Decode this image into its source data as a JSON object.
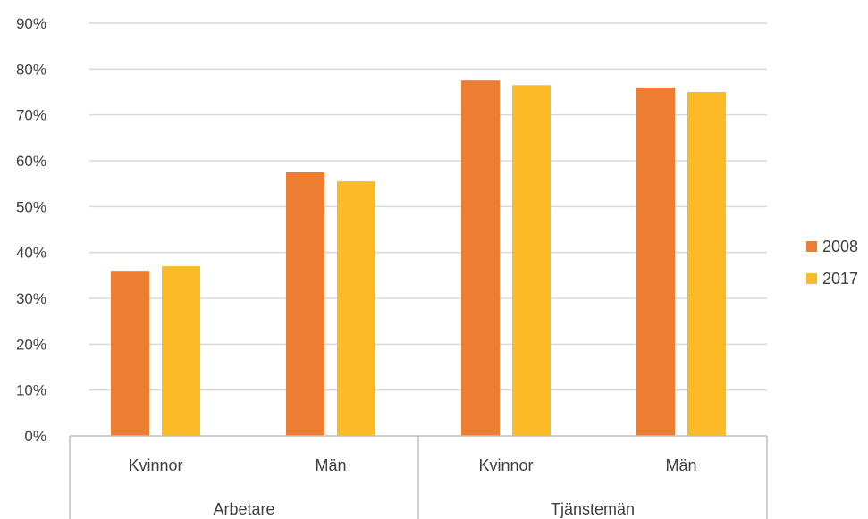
{
  "chart_data": {
    "type": "bar",
    "groups": [
      {
        "label": "Arbetare",
        "categories": [
          "Kvinnor",
          "Män"
        ]
      },
      {
        "label": "Tjänstemän",
        "categories": [
          "Kvinnor",
          "Män"
        ]
      }
    ],
    "categories": [
      "Kvinnor",
      "Män",
      "Kvinnor",
      "Män"
    ],
    "series": [
      {
        "name": "2008",
        "color": "#ED7D31",
        "values": [
          36,
          57.5,
          77.5,
          76
        ]
      },
      {
        "name": "2017",
        "color": "#FBBA26",
        "values": [
          37,
          55.5,
          76.5,
          75
        ]
      }
    ],
    "y_ticks": [
      "0%",
      "10%",
      "20%",
      "30%",
      "40%",
      "50%",
      "60%",
      "70%",
      "80%",
      "90%"
    ],
    "ylim": [
      0,
      90
    ],
    "grid": true,
    "legend_position": "right"
  }
}
